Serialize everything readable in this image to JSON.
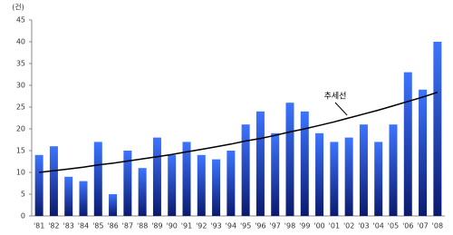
{
  "chart_data": {
    "type": "bar",
    "unit_label": "(건)",
    "categories": [
      "'81",
      "'82",
      "'83",
      "'84",
      "'85",
      "'86",
      "'87",
      "'88",
      "'89",
      "'90",
      "'91",
      "'92",
      "'93",
      "'94",
      "'95",
      "'96",
      "'97",
      "'98",
      "'99",
      "'00",
      "'01",
      "'02",
      "'03",
      "'04",
      "'05",
      "'06",
      "'07",
      "'08"
    ],
    "values": [
      14,
      16,
      9,
      8,
      17,
      5,
      15,
      11,
      18,
      14,
      17,
      14,
      13,
      15,
      21,
      24,
      19,
      26,
      24,
      19,
      17,
      18,
      21,
      17,
      21,
      33,
      29,
      40
    ],
    "color": "#2f5fe6",
    "trend": {
      "label": "추세선",
      "color": "#000000",
      "values": [
        10.0,
        10.4,
        10.8,
        11.2,
        11.7,
        12.1,
        12.6,
        13.1,
        13.6,
        14.1,
        14.7,
        15.3,
        15.9,
        16.5,
        17.2,
        17.8,
        18.5,
        19.3,
        20.0,
        20.8,
        21.6,
        22.5,
        23.4,
        24.3,
        25.3,
        26.3,
        27.3,
        28.4
      ]
    },
    "ylim": [
      0,
      45
    ],
    "yticks": [
      0,
      5,
      10,
      15,
      20,
      25,
      30,
      35,
      40,
      45
    ]
  }
}
